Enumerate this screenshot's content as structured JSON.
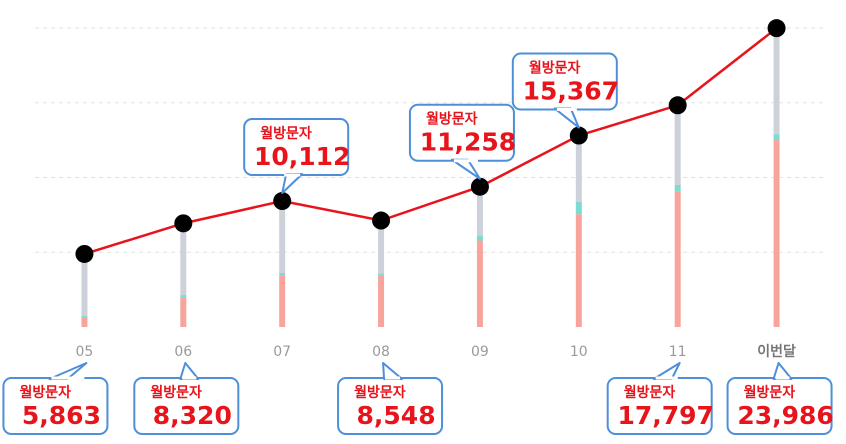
{
  "chart_data": {
    "type": "combo",
    "categories": [
      "05",
      "06",
      "07",
      "08",
      "09",
      "10",
      "11",
      "이번달"
    ],
    "values": [
      5863,
      8320,
      10112,
      8548,
      11258,
      15367,
      17797,
      23986
    ],
    "value_labels": [
      "5,863",
      "8,320",
      "10,112",
      "8,548",
      "11,258",
      "15,367",
      "17,797",
      "23,986"
    ],
    "callout_title": "월방문자",
    "line_color": "#e8141c",
    "stack": [
      {
        "color": "#f8a49c",
        "values": [
          768,
          2357,
          4127,
          4103,
          6939,
          9052,
          10845,
          15001
        ]
      },
      {
        "color": "#7ddccf",
        "values": [
          140,
          208,
          206,
          205,
          425,
          982,
          556,
          481
        ]
      },
      {
        "color": "#cdd1da",
        "values": [
          4955,
          5755,
          5779,
          4240,
          3894,
          5333,
          6396,
          8504
        ]
      }
    ],
    "ylim": [
      0,
      24000
    ],
    "yticks": [
      6000,
      12000,
      18000,
      24000
    ],
    "grid": true
  }
}
